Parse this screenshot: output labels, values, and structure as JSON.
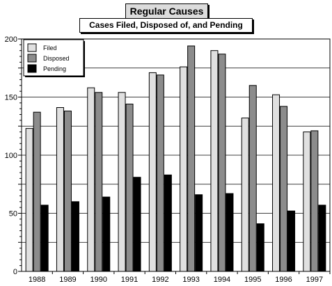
{
  "chart_data": {
    "type": "bar",
    "title": "Regular Causes",
    "subtitle": "Cases Filed, Disposed of, and Pending",
    "categories": [
      "1988",
      "1989",
      "1990",
      "1991",
      "1992",
      "1993",
      "1994",
      "1995",
      "1996",
      "1997"
    ],
    "series": [
      {
        "name": "Filed",
        "color": "#e0e0e0",
        "values": [
          123,
          141,
          158,
          154,
          171,
          176,
          190,
          132,
          152,
          120
        ]
      },
      {
        "name": "Disposed",
        "color": "#8c8c8c",
        "values": [
          137,
          138,
          154,
          144,
          169,
          194,
          187,
          160,
          142,
          121
        ]
      },
      {
        "name": "Pending",
        "color": "#000000",
        "values": [
          57,
          60,
          64,
          81,
          83,
          66,
          67,
          41,
          52,
          57
        ]
      }
    ],
    "ylim": [
      0,
      200
    ],
    "yticks": [
      0,
      50,
      100,
      150,
      200
    ],
    "grid": true,
    "legend_position": "top-left"
  }
}
